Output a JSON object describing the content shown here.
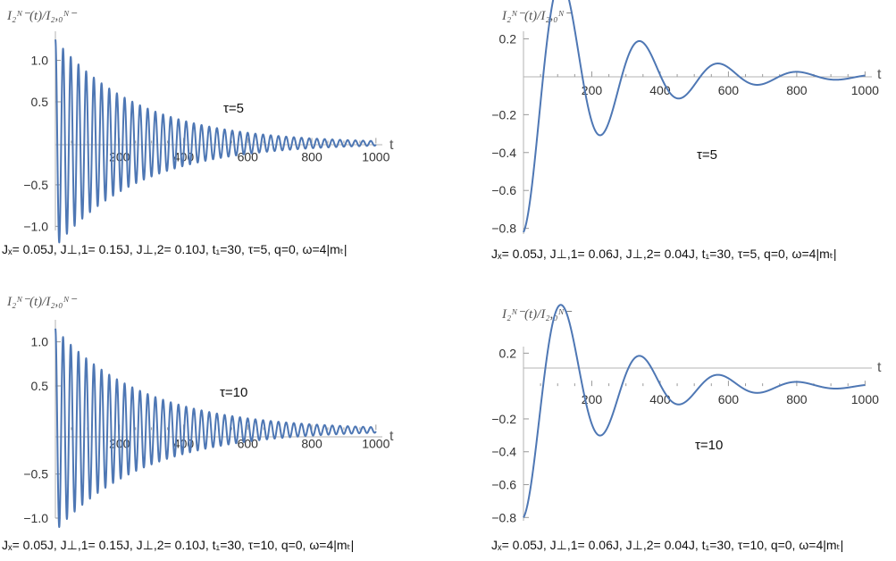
{
  "colors": {
    "series": "#4e77b4",
    "axis": "#b3b3b3"
  },
  "chart_data": [
    {
      "type": "line",
      "ylabel": "I₂ᴺ⁻(t)/I₂,₀ᴺ⁻",
      "xlabel": "t",
      "xlim": [
        0,
        1020
      ],
      "ylim": [
        -1.05,
        1.35
      ],
      "xticks": [
        200,
        400,
        600,
        800,
        1000
      ],
      "yticks": [
        -1.0,
        -0.5,
        0.5,
        1.0
      ],
      "ytick_labels": [
        "−1.0",
        "−0.5",
        "0.5",
        "1.0"
      ],
      "annotation": "τ=5",
      "caption": "Jₓ= 0.05J,  J⊥,1= 0.15J,  J⊥,2= 0.10J,  t₁=30,  τ=5,  q=0,  ω=4|mₜ|",
      "series": [
        {
          "model": "damped_cosine",
          "y0": 1.25,
          "period": 24,
          "decay": 0.0038,
          "phase": 0.0,
          "offset": 0.0
        }
      ],
      "grid": false
    },
    {
      "type": "line",
      "ylabel": "I₂ᴺ⁻(t)/I₂,₀ᴺ⁻",
      "xlabel": "t",
      "xlim": [
        0,
        1020
      ],
      "ylim": [
        -0.83,
        0.24
      ],
      "xticks": [
        200,
        400,
        600,
        800,
        1000
      ],
      "yticks": [
        -0.8,
        -0.6,
        -0.4,
        -0.2,
        0.2
      ],
      "ytick_labels": [
        "−0.8",
        "−0.6",
        "−0.4",
        "−0.2",
        "0.2"
      ],
      "annotation": "τ=5",
      "caption": "Jₓ= 0.05J,  J⊥,1= 0.06J,  J⊥,2= 0.04J,  t₁=30,  τ=5,  q=0,  ω=4|mₜ|",
      "series": [
        {
          "model": "damped_cosine",
          "y0": -0.82,
          "period": 230,
          "decay": 0.0043,
          "phase": 0.0,
          "offset": 0.0
        }
      ],
      "grid": false
    },
    {
      "type": "line",
      "ylabel": "I₂ᴺ⁻(t)/I₂,₀ᴺ⁻",
      "xlabel": "t",
      "xlim": [
        0,
        1020
      ],
      "ylim": [
        -1.0,
        1.25
      ],
      "xticks": [
        200,
        400,
        600,
        800,
        1000
      ],
      "yticks": [
        -1.0,
        -0.5,
        0.5,
        1.0
      ],
      "ytick_labels": [
        "−1.0",
        "−0.5",
        "0.5",
        "1.0"
      ],
      "annotation": "τ=10",
      "caption": "Jₓ= 0.05J,  J⊥,1= 0.15J,  J⊥,2= 0.10J,  t₁=30,  τ=10,  q=0,  ω=4|mₜ|",
      "series": [
        {
          "model": "damped_cosine",
          "y0": 1.15,
          "period": 24,
          "decay": 0.0036,
          "phase": 0.0,
          "offset": 0.0
        }
      ],
      "grid": false
    },
    {
      "type": "line",
      "ylabel": "I₂ᴺ⁻(t)/I₂,₀ᴺ⁻",
      "xlabel": "t",
      "xlim": [
        0,
        1020
      ],
      "ylim": [
        -0.82,
        0.24
      ],
      "xticks": [
        200,
        400,
        600,
        800,
        1000
      ],
      "yticks": [
        -0.8,
        -0.6,
        -0.4,
        -0.2,
        0.2
      ],
      "ytick_labels": [
        "−0.8",
        "−0.6",
        "−0.4",
        "−0.2",
        "0.2"
      ],
      "annotation": "τ=10",
      "caption": "Jₓ= 0.05J,  J⊥,1= 0.06J,  J⊥,2= 0.04J,  t₁=30,  τ=10,  q=0,  ω=4|mₜ|",
      "series": [
        {
          "model": "damped_cosine",
          "y0": -0.8,
          "period": 230,
          "decay": 0.0043,
          "phase": 0.0,
          "offset": 0.0
        }
      ],
      "grid": false
    }
  ]
}
